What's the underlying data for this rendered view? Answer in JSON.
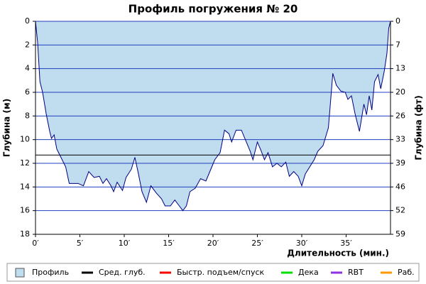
{
  "chart_data": {
    "type": "area",
    "title": "Профиль погружения № 20",
    "x_label": "Длительность (мин.)",
    "y_label": "Глубина (м)",
    "y2_label": "Глубина (фт)",
    "xlim": [
      0,
      40
    ],
    "xticks": [
      {
        "value": 0,
        "label": "0′"
      },
      {
        "value": 5,
        "label": "5′"
      },
      {
        "value": 10,
        "label": "10′"
      },
      {
        "value": 15,
        "label": "15′"
      },
      {
        "value": 20,
        "label": "20′"
      },
      {
        "value": 25,
        "label": "25′"
      },
      {
        "value": 30,
        "label": "30′"
      },
      {
        "value": 35,
        "label": "35′"
      }
    ],
    "ylim": [
      0,
      18
    ],
    "y_inverted": true,
    "yticks": [
      0,
      2,
      4,
      6,
      8,
      10,
      12,
      14,
      16,
      18
    ],
    "y2lim": [
      0,
      59.06
    ],
    "y2ticks": [
      0,
      {
        "value": 6.56,
        "label": "7"
      },
      {
        "value": 13.12,
        "label": "13"
      },
      {
        "value": 19.69,
        "label": "20"
      },
      {
        "value": 26.25,
        "label": "26"
      },
      {
        "value": 32.81,
        "label": "33"
      },
      {
        "value": 39.37,
        "label": "39"
      },
      {
        "value": 45.93,
        "label": "46"
      },
      {
        "value": 52.49,
        "label": "52"
      },
      {
        "value": 59.06,
        "label": "59"
      }
    ],
    "grid": true,
    "grid_color": "#2040c0",
    "series": [
      {
        "name": "Профиль",
        "color": "#c0dcef",
        "line_color": "#000080",
        "x": [
          0,
          0.24,
          0.5,
          0.8,
          1.2,
          1.6,
          1.8,
          2.1,
          2.4,
          2.8,
          3.4,
          3.8,
          4.4,
          4.8,
          5.4,
          6,
          6.6,
          7.2,
          7.6,
          8,
          8.5,
          8.8,
          9.2,
          9.8,
          10.2,
          10.8,
          11.2,
          11.6,
          12,
          12.5,
          13,
          13.6,
          14.2,
          14.6,
          15.2,
          15.7,
          16.2,
          16.6,
          17,
          17.4,
          18,
          18.6,
          19.2,
          19.7,
          20.2,
          20.8,
          21.3,
          21.8,
          22.1,
          22.6,
          23.2,
          23.7,
          24.2,
          24.5,
          25,
          25.4,
          25.8,
          26.2,
          26.7,
          27.2,
          27.7,
          28.2,
          28.6,
          29.1,
          29.6,
          30,
          30.4,
          30.9,
          31.4,
          31.8,
          32.4,
          33,
          33.2,
          33.5,
          33.9,
          34.4,
          34.9,
          35.2,
          35.6,
          36,
          36.5,
          37,
          37.3,
          37.6,
          37.9,
          38.2,
          38.6,
          38.9,
          39.3,
          39.6,
          39.8,
          40
        ],
        "values": [
          0,
          1.8,
          5.1,
          6,
          7.8,
          9.3,
          9.9,
          9.6,
          10.8,
          11.4,
          12.3,
          13.7,
          13.7,
          13.7,
          13.9,
          12.7,
          13.2,
          13.1,
          13.7,
          13.3,
          13.9,
          14.4,
          13.6,
          14.3,
          13.2,
          12.5,
          11.5,
          12.9,
          14.4,
          15.3,
          13.9,
          14.5,
          15,
          15.6,
          15.6,
          15.1,
          15.6,
          16,
          15.6,
          14.4,
          14.1,
          13.3,
          13.5,
          12.6,
          11.7,
          11.1,
          9.2,
          9.5,
          10.2,
          9.2,
          9.2,
          10.1,
          11,
          11.7,
          10.2,
          10.9,
          11.7,
          11.1,
          12.3,
          12,
          12.3,
          11.9,
          13.1,
          12.7,
          13.1,
          13.9,
          12.9,
          12.3,
          11.7,
          11,
          10.5,
          9,
          7.2,
          4.4,
          5.4,
          5.9,
          6,
          6.6,
          6.3,
          7.8,
          9.3,
          7,
          7.9,
          6.3,
          7.5,
          5.1,
          4.5,
          5.7,
          4.2,
          2.7,
          0.6,
          0
        ]
      },
      {
        "name": "Сред. глуб.",
        "color": "#000000",
        "value": 11.3
      },
      {
        "name": "Быстр. подъем/спуск",
        "color": "#ff0000"
      },
      {
        "name": "Дека",
        "color": "#00e000"
      },
      {
        "name": "RBT",
        "color": "#9030e0"
      },
      {
        "name": "Раб.",
        "color": "#ff9900"
      }
    ]
  }
}
